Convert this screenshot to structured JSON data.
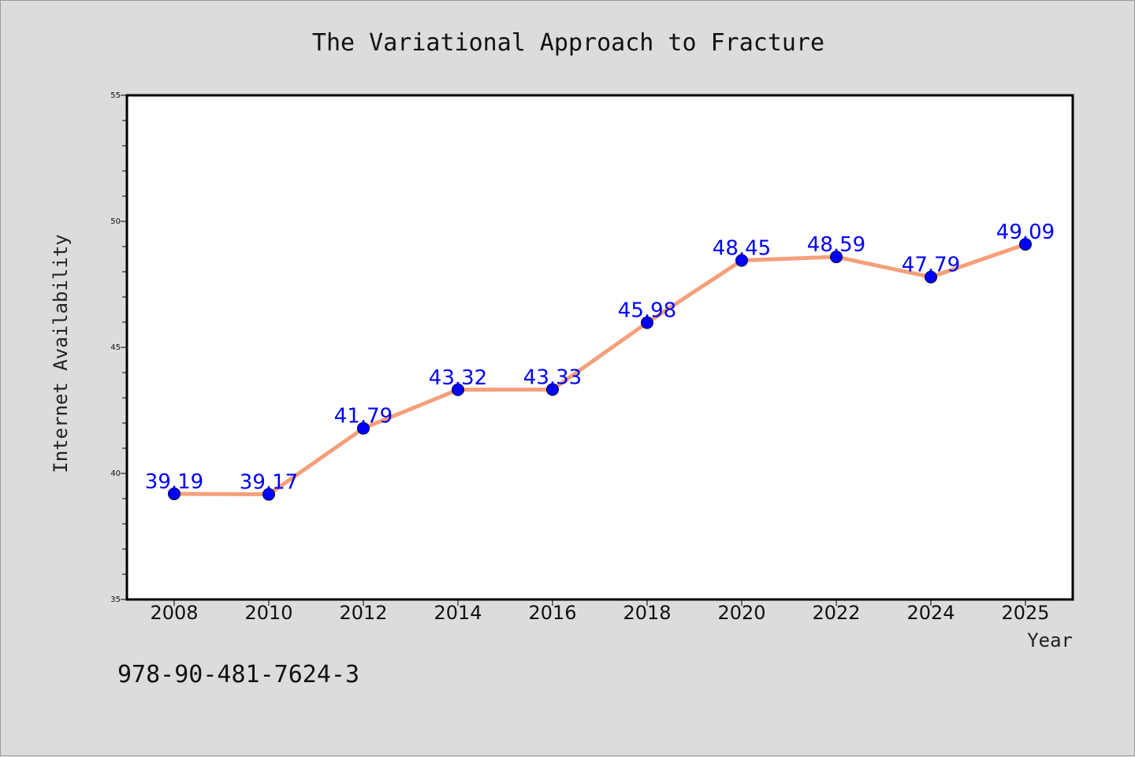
{
  "colors": {
    "background": "#dcdcdc",
    "plot_area": "#ffffff",
    "line": "#f4a07a",
    "marker": "#0000ff",
    "data_label": "#0000ff"
  },
  "footer": {
    "isbn": "978-90-481-7624-3"
  },
  "chart_data": {
    "type": "line",
    "title": "The Variational Approach to Fracture",
    "xlabel": "Year",
    "ylabel": "Internet Availability",
    "categories": [
      "2008",
      "2010",
      "2012",
      "2014",
      "2016",
      "2018",
      "2020",
      "2022",
      "2024",
      "2025"
    ],
    "series": [
      {
        "values": [
          39.19,
          39.17,
          41.79,
          43.32,
          43.33,
          45.98,
          48.45,
          48.59,
          47.79,
          49.09
        ]
      }
    ],
    "data_labels": [
      "39.19",
      "39.17",
      "41.79",
      "43.32",
      "43.33",
      "45.98",
      "48.45",
      "48.59",
      "47.79",
      "49.09"
    ],
    "ylim": [
      35,
      55
    ],
    "yticks": [
      35,
      40,
      45,
      50,
      55
    ],
    "y_minor_step": 1,
    "grid": false,
    "legend": "none"
  }
}
